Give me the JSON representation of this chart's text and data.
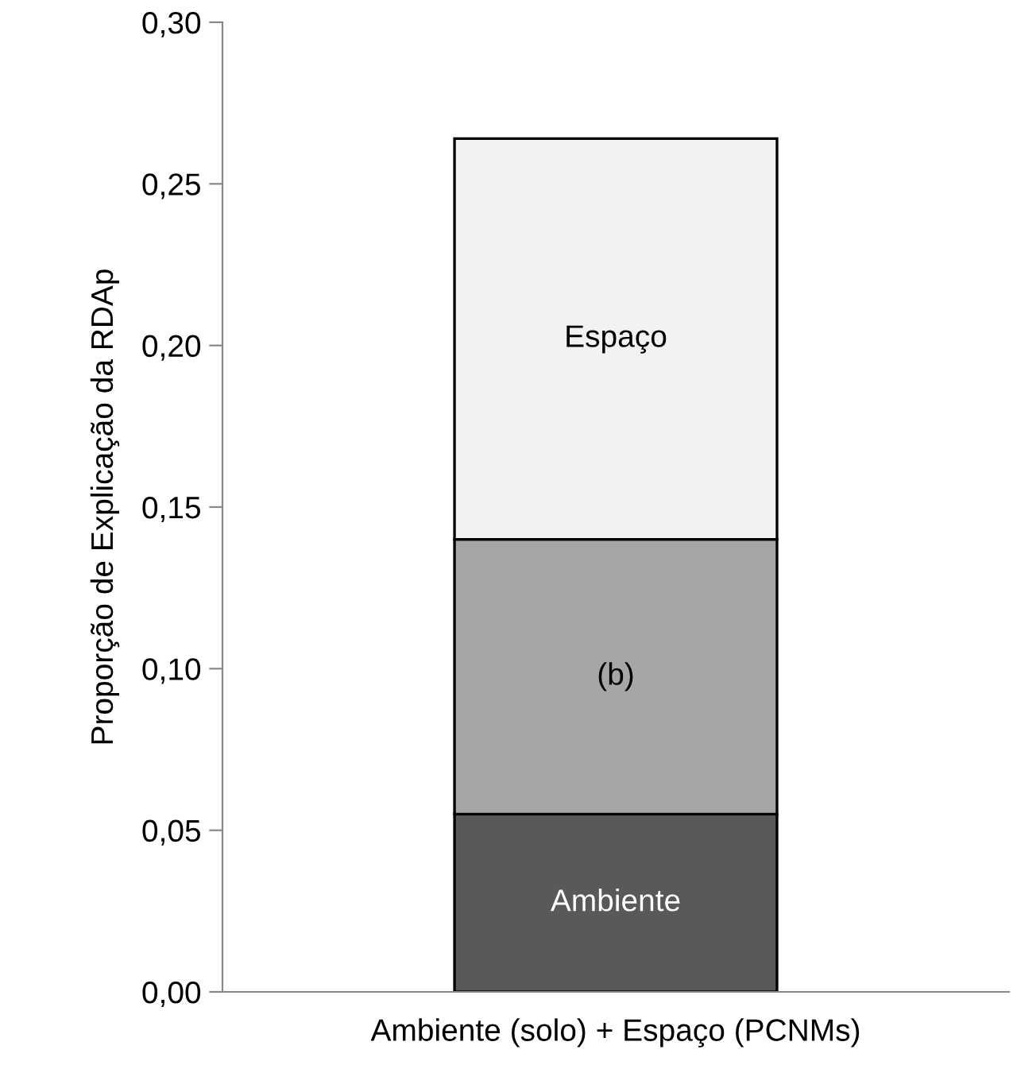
{
  "chart_data": {
    "type": "bar",
    "stacked": true,
    "ylabel": "Proporção de Explicação da RDAp",
    "categories": [
      "Ambiente (solo) + Espaço (PCNMs)"
    ],
    "series": [
      {
        "name": "Ambiente",
        "color": "#595959",
        "values": [
          0.055
        ]
      },
      {
        "name": "(b)",
        "color": "#a6a6a6",
        "values": [
          0.085
        ]
      },
      {
        "name": "Espaço",
        "color": "#f2f2f2",
        "values": [
          0.124
        ]
      }
    ],
    "ylim": [
      0,
      0.3
    ],
    "yticks": [
      {
        "value": 0,
        "label": "0,00"
      },
      {
        "value": 0.05,
        "label": "0,05"
      },
      {
        "value": 0.1,
        "label": "0,10"
      },
      {
        "value": 0.15,
        "label": "0,15"
      },
      {
        "value": 0.2,
        "label": "0,20"
      },
      {
        "value": 0.25,
        "label": "0,25"
      },
      {
        "value": 0.3,
        "label": "0,30"
      }
    ],
    "grid": false,
    "legend": false
  }
}
